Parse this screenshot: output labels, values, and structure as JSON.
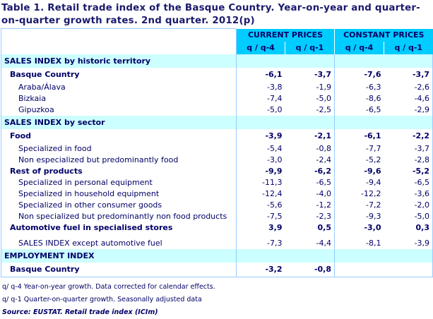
{
  "title": "Table 1. Retail trade index of the Basque Country. Year-on-year and quarter-on-quarter growth rates. 2nd quarter. 2012(p)",
  "headers": {
    "current": "CURRENT PRICES",
    "constant": "CONSTANT PRICES",
    "sub": [
      "q / q-4",
      "q / q-1",
      "q / q-4",
      "q / q-1"
    ]
  },
  "sections": [
    {
      "label": "SALES INDEX by historic territory",
      "rows": [
        {
          "label": "Basque Country",
          "level": 1,
          "bold": true,
          "values": [
            "-6,1",
            "-3,7",
            "-7,6",
            "-3,7"
          ]
        },
        {
          "label": "Araba/Álava",
          "level": 2,
          "values": [
            "-3,8",
            "-1,9",
            "-6,3",
            "-2,6"
          ]
        },
        {
          "label": "Bizkaia",
          "level": 2,
          "values": [
            "-7,4",
            "-5,0",
            "-8,6",
            "-4,6"
          ]
        },
        {
          "label": "Gipuzkoa",
          "level": 2,
          "values": [
            "-5,0",
            "-2,5",
            "-6,5",
            "-2,9"
          ]
        }
      ]
    },
    {
      "label": "SALES INDEX by sector",
      "rows": [
        {
          "label": "Food",
          "level": 1,
          "bold": true,
          "values": [
            "-3,9",
            "-2,1",
            "-6,1",
            "-2,2"
          ]
        },
        {
          "label": "Specialized in food",
          "level": 2,
          "values": [
            "-5,4",
            "-0,8",
            "-7,7",
            "-3,7"
          ]
        },
        {
          "label": "Non especialized but predominantly food",
          "level": 2,
          "values": [
            "-3,0",
            "-2,4",
            "-5,2",
            "-2,8"
          ]
        },
        {
          "label": "Rest of products",
          "level": 1,
          "bold": true,
          "values": [
            "-9,9",
            "-6,2",
            "-9,6",
            "-5,2"
          ]
        },
        {
          "label": "Specialized in personal equipment",
          "level": 2,
          "values": [
            "-11,3",
            "-6,5",
            "-9,4",
            "-6,5"
          ]
        },
        {
          "label": "Specialized in household equipment",
          "level": 2,
          "values": [
            "-12,4",
            "-4,0",
            "-12,2",
            "-3,6"
          ]
        },
        {
          "label": "Specialized in other consumer goods",
          "level": 2,
          "values": [
            "-5,6",
            "-1,2",
            "-7,2",
            "-2,0"
          ]
        },
        {
          "label": "Non specialized but predominantly non food products",
          "level": 2,
          "values": [
            "-7,5",
            "-2,3",
            "-9,3",
            "-5,0"
          ]
        },
        {
          "label": "Automotive fuel in specialised stores",
          "level": 1,
          "bold": true,
          "values": [
            "3,9",
            "0,5",
            "-3,0",
            "0,3"
          ]
        },
        {
          "label": "SALES INDEX except automotive fuel",
          "level": 0,
          "gapBefore": true,
          "values": [
            "-7,3",
            "-4,4",
            "-8,1",
            "-3,9"
          ]
        }
      ]
    },
    {
      "label": "EMPLOYMENT INDEX",
      "rows": [
        {
          "label": "Basque Country",
          "level": 1,
          "bold": true,
          "values": [
            "-3,2",
            "-0,8",
            "",
            ""
          ]
        }
      ]
    }
  ],
  "notes": [
    "q/ q-4 Year-on-year growth. Data corrected for calendar effects.",
    "q/ q-1 Quarter-on-quarter growth. Seasonally adjusted data"
  ],
  "source": "Source: EUSTAT. Retail trade index (ICIm)"
}
